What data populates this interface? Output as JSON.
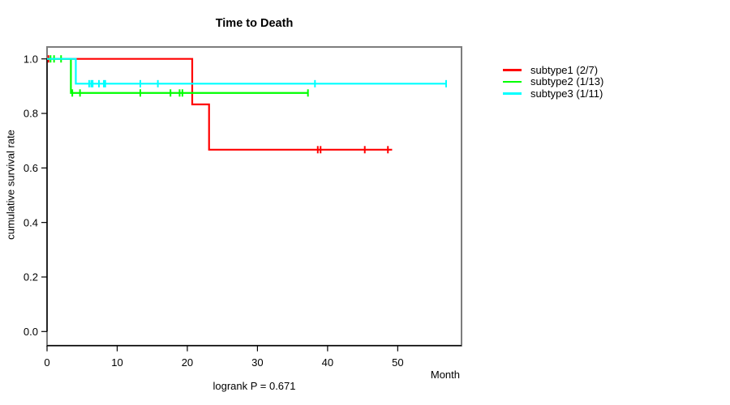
{
  "chart_data": {
    "type": "line",
    "variant": "kaplan-meier-step",
    "title": "Time to Death",
    "xlabel": "Month",
    "ylabel": "cumulative survival rate",
    "annotation": "logrank P = 0.671",
    "xlim": [
      0,
      59
    ],
    "ylim": [
      0,
      1
    ],
    "xticks": [
      0,
      10,
      20,
      30,
      40,
      50
    ],
    "yticks": [
      0.0,
      0.2,
      0.4,
      0.6,
      0.8,
      1.0
    ],
    "grid": false,
    "legend_position": "right-outside",
    "series": [
      {
        "name": "subtype1 (2/7)",
        "color": "#ff0000",
        "events": 2,
        "n": 7,
        "steps": [
          [
            0,
            1.0
          ],
          [
            20.7,
            1.0
          ],
          [
            20.7,
            0.833
          ],
          [
            23.1,
            0.833
          ],
          [
            23.1,
            0.667
          ],
          [
            49.2,
            0.667
          ]
        ],
        "censors": [
          [
            0.2,
            1.0
          ],
          [
            38.6,
            0.667
          ],
          [
            39.0,
            0.667
          ],
          [
            45.3,
            0.667
          ],
          [
            48.6,
            0.667
          ]
        ]
      },
      {
        "name": "subtype2 (1/13)",
        "color": "#00ff00",
        "events": 1,
        "n": 13,
        "steps": [
          [
            0,
            1.0
          ],
          [
            3.4,
            1.0
          ],
          [
            3.4,
            0.875
          ],
          [
            37.2,
            0.875
          ]
        ],
        "censors": [
          [
            0.5,
            1.0
          ],
          [
            1.0,
            1.0
          ],
          [
            2.0,
            1.0
          ],
          [
            3.6,
            0.875
          ],
          [
            4.7,
            0.875
          ],
          [
            13.3,
            0.875
          ],
          [
            17.6,
            0.875
          ],
          [
            18.9,
            0.875
          ],
          [
            19.3,
            0.875
          ],
          [
            37.2,
            0.875
          ]
        ]
      },
      {
        "name": "subtype3 (1/11)",
        "color": "#00ffff",
        "events": 1,
        "n": 11,
        "steps": [
          [
            0,
            1.0
          ],
          [
            4.1,
            1.0
          ],
          [
            4.1,
            0.909
          ],
          [
            56.9,
            0.909
          ]
        ],
        "censors": [
          [
            6.0,
            0.909
          ],
          [
            6.3,
            0.909
          ],
          [
            6.5,
            0.909
          ],
          [
            7.4,
            0.909
          ],
          [
            8.1,
            0.909
          ],
          [
            8.3,
            0.909
          ],
          [
            13.3,
            0.909
          ],
          [
            15.8,
            0.909
          ],
          [
            38.2,
            0.909
          ],
          [
            56.9,
            0.909
          ]
        ]
      }
    ],
    "colors": {
      "box": "#7d7d7d",
      "axis": "#000000",
      "background": "#ffffff"
    }
  }
}
